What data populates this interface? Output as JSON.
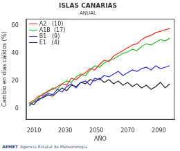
{
  "chart_data": {
    "type": "line",
    "title": "ISLAS CANARIAS",
    "subtitle": "ANUAL",
    "x_label": "AÑO",
    "y_label": "Cambio en días cálidos (%)",
    "x": [
      2007,
      2010,
      2013,
      2016,
      2019,
      2022,
      2025,
      2028,
      2031,
      2034,
      2037,
      2040,
      2043,
      2046,
      2049,
      2052,
      2055,
      2058,
      2061,
      2064,
      2067,
      2070,
      2073,
      2076,
      2079,
      2082,
      2085,
      2088,
      2091,
      2094,
      2097
    ],
    "series": [
      {
        "name": "A2   (10)",
        "color": "#e8332a",
        "values": [
          4,
          6,
          9,
          10,
          13,
          14,
          16,
          18,
          17,
          22,
          21,
          24,
          26,
          29,
          28,
          32,
          35,
          34,
          38,
          40,
          42,
          44,
          46,
          47,
          50,
          52,
          53,
          55,
          56,
          57,
          58
        ]
      },
      {
        "name": "A1B  (17)",
        "color": "#2fb52f",
        "values": [
          3,
          5,
          8,
          11,
          12,
          15,
          14,
          18,
          20,
          19,
          23,
          25,
          24,
          28,
          31,
          30,
          33,
          35,
          36,
          38,
          40,
          41,
          43,
          42,
          45,
          47,
          46,
          48,
          50,
          49,
          51
        ]
      },
      {
        "name": "B1   (9)",
        "color": "#2a2ae0",
        "values": [
          2,
          5,
          6,
          9,
          11,
          10,
          14,
          12,
          16,
          18,
          15,
          19,
          20,
          17,
          22,
          21,
          24,
          23,
          25,
          27,
          24,
          26,
          28,
          27,
          29,
          30,
          28,
          31,
          29,
          30,
          31
        ]
      },
      {
        "name": "E1   (4)",
        "color": "#222222",
        "values": [
          4,
          3,
          7,
          8,
          10,
          9,
          12,
          15,
          13,
          17,
          16,
          19,
          18,
          21,
          20,
          22,
          19,
          21,
          18,
          20,
          17,
          19,
          16,
          18,
          15,
          17,
          14,
          16,
          19,
          15,
          18
        ]
      }
    ],
    "xlim": [
      2005,
      2100
    ],
    "xticks": [
      2010,
      2030,
      2050,
      2070,
      2090
    ],
    "ylim": [
      -8,
      65
    ],
    "yticks": [
      0,
      20,
      40,
      60
    ],
    "grid": false,
    "legend": "upper left",
    "annotations": [
      "AEMET",
      "Agencia Estatal de Meteorología"
    ]
  }
}
